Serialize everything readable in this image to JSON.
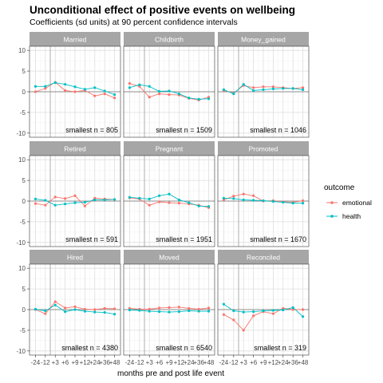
{
  "title": "Unconditional effect of positive events on wellbeing",
  "subtitle": "Coefficients (sd units) at 90 percent confidence intervals",
  "legend": {
    "title": "outcome",
    "items": [
      {
        "label": "emotional",
        "color": "#F8766D"
      },
      {
        "label": "health",
        "color": "#00BFC4"
      }
    ]
  },
  "chart_data": {
    "type": "line",
    "xlabel": "months pre and post life event",
    "ylabel": "",
    "x_ticks": [
      "-24",
      "-12",
      "+3",
      "+6",
      "+9",
      "+12",
      "+24",
      "+36",
      "+48"
    ],
    "ylim": [
      -11,
      11
    ],
    "y_ticks": [
      -10,
      -5,
      0,
      5,
      10
    ],
    "grid": true,
    "legend_position": "right",
    "reference_line_y": 0,
    "event_marker_between": [
      "-12",
      "+3"
    ],
    "panels": [
      {
        "name": "Married",
        "note": "smallest n = 805",
        "series": [
          {
            "name": "emotional",
            "values": [
              0,
              0.8,
              2.3,
              0.3,
              0,
              0.3,
              -1,
              -0.5,
              -1.5
            ]
          },
          {
            "name": "health",
            "values": [
              1.3,
              1.3,
              2.2,
              1.8,
              1.2,
              0.6,
              1,
              0.2,
              -0.7
            ]
          }
        ]
      },
      {
        "name": "Childbirth",
        "note": "smallest n = 1509",
        "series": [
          {
            "name": "emotional",
            "values": [
              2,
              1.3,
              -1.3,
              -0.5,
              -0.7,
              -0.8,
              -1.6,
              -2,
              -1.3
            ]
          },
          {
            "name": "health",
            "values": [
              1,
              1.7,
              1.3,
              0.1,
              0.2,
              -0.5,
              -1.5,
              -1.8,
              -1.7
            ]
          }
        ]
      },
      {
        "name": "Money_gained",
        "note": "smallest n = 1046",
        "series": [
          {
            "name": "emotional",
            "values": [
              0.3,
              -0.3,
              1.5,
              1,
              1.2,
              1.2,
              1,
              0.8,
              1
            ]
          },
          {
            "name": "health",
            "values": [
              0.5,
              -0.5,
              1.8,
              0.3,
              0.5,
              0.7,
              0.8,
              0.8,
              0.5
            ]
          }
        ]
      },
      {
        "name": "Retired",
        "note": "smallest n = 591",
        "series": [
          {
            "name": "emotional",
            "values": [
              -0.6,
              -1,
              1,
              0.6,
              1.3,
              -1.2,
              0.7,
              0.5,
              0.4
            ]
          },
          {
            "name": "health",
            "values": [
              0.5,
              0.2,
              -1,
              -0.7,
              -0.4,
              -0.3,
              0.3,
              0.3,
              0.4
            ]
          }
        ]
      },
      {
        "name": "Pregnant",
        "note": "smallest n = 1951",
        "series": [
          {
            "name": "emotional",
            "values": [
              0.8,
              0.5,
              -1,
              -0.2,
              -0.4,
              -0.5,
              -0.7,
              -1,
              -1.6
            ]
          },
          {
            "name": "health",
            "values": [
              0.9,
              0.7,
              0.5,
              1.3,
              1.7,
              0.3,
              -0.4,
              -1.2,
              -1.3
            ]
          }
        ]
      },
      {
        "name": "Promoted",
        "note": "smallest n = 1670",
        "series": [
          {
            "name": "emotional",
            "values": [
              0.3,
              1.2,
              1.7,
              1.3,
              0,
              0.1,
              -0.2,
              -0.3,
              0.1
            ]
          },
          {
            "name": "health",
            "values": [
              0.7,
              0.6,
              0.3,
              0.2,
              0.1,
              -0.1,
              -0.3,
              -0.5,
              -0.5
            ]
          }
        ]
      },
      {
        "name": "Hired",
        "note": "smallest n = 4380",
        "series": [
          {
            "name": "emotional",
            "values": [
              0,
              -1,
              1.9,
              0.4,
              0.7,
              0.1,
              0,
              0.3,
              0.2
            ]
          },
          {
            "name": "health",
            "values": [
              0.1,
              -0.3,
              1.1,
              -0.5,
              0,
              -0.4,
              -0.6,
              -0.7,
              -1.1
            ]
          }
        ]
      },
      {
        "name": "Moved",
        "note": "smallest n = 6540",
        "series": [
          {
            "name": "emotional",
            "values": [
              0.3,
              0.1,
              0.1,
              0.4,
              0.5,
              0.6,
              0.3,
              0.1,
              0.4
            ]
          },
          {
            "name": "health",
            "values": [
              -0.1,
              -0.2,
              -0.4,
              -0.5,
              -0.6,
              -0.5,
              -0.3,
              -0.4,
              -0.4
            ]
          }
        ]
      },
      {
        "name": "Reconciled",
        "note": "smallest n = 319",
        "series": [
          {
            "name": "emotional",
            "values": [
              -1.2,
              -2.5,
              -5,
              -1.5,
              -0.5,
              -1,
              0.3,
              0,
              0
            ]
          },
          {
            "name": "health",
            "values": [
              1.3,
              -0.3,
              -0.6,
              -0.5,
              -0.3,
              -0.2,
              -0.1,
              0.5,
              -1.7
            ]
          }
        ]
      }
    ]
  }
}
